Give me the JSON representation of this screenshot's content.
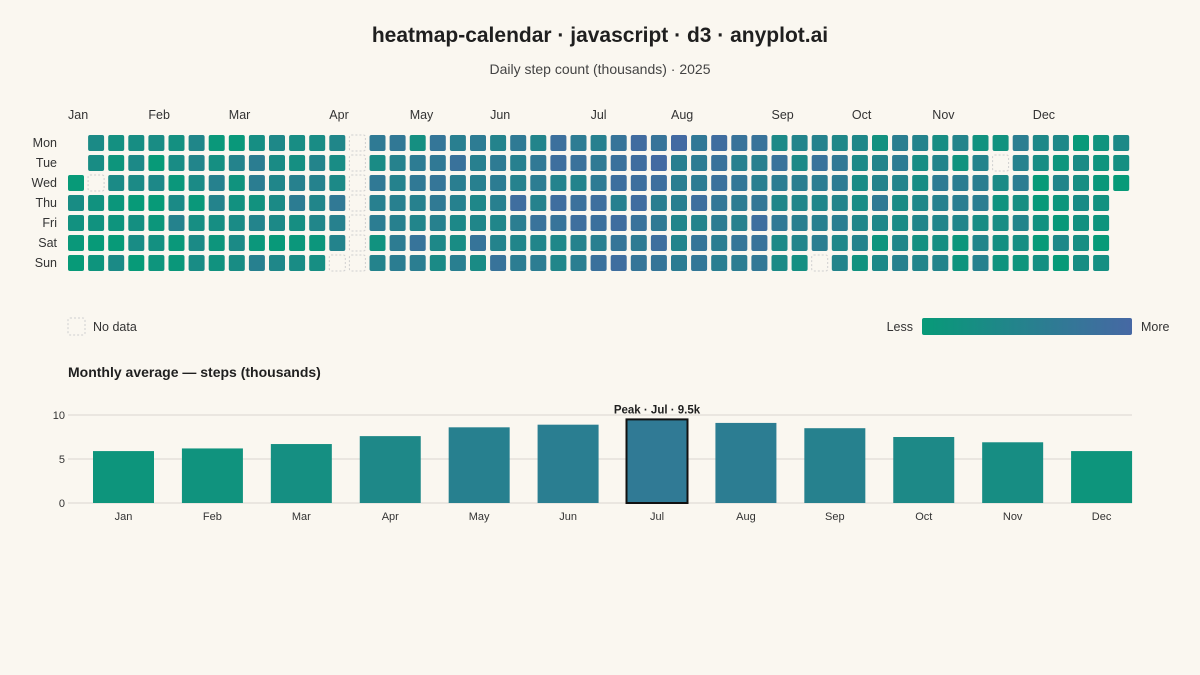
{
  "header": {
    "title": "heatmap-calendar · javascript · d3 · anyplot.ai",
    "subtitle": "Daily step count (thousands) · 2025"
  },
  "colors": {
    "low": "#079a78",
    "high": "#4668a4",
    "background": "#faf7f0",
    "no_data_stroke": "#cfcfcf",
    "peak_outline": "#111111"
  },
  "chart_data": [
    {
      "type": "heatmap",
      "subtitle": "Daily step count (thousands) · 2025",
      "year": 2025,
      "months": [
        "Jan",
        "Feb",
        "Mar",
        "Apr",
        "May",
        "Jun",
        "Jul",
        "Aug",
        "Sep",
        "Oct",
        "Nov",
        "Dec"
      ],
      "weekdays": [
        "Mon",
        "Tue",
        "Wed",
        "Thu",
        "Fri",
        "Sat",
        "Sun"
      ],
      "week_start": "Mon",
      "value_range": [
        3,
        13
      ],
      "legend": {
        "no_data": "No data",
        "less": "Less",
        "more": "More",
        "placement": "bottom"
      },
      "missing_dates": [
        "2025-01-08",
        "2025-04-06",
        "2025-04-07",
        "2025-04-08",
        "2025-04-09",
        "2025-04-10",
        "2025-04-11",
        "2025-04-12",
        "2025-04-13",
        "2025-09-21",
        "2025-11-18"
      ],
      "monthly_levels": [
        4.5,
        5.5,
        6.5,
        7.5,
        9.0,
        9.5,
        10.5,
        9.5,
        8.5,
        7.0,
        6.5,
        5.0
      ]
    },
    {
      "type": "bar",
      "title": "Monthly average — steps (thousands)",
      "categories": [
        "Jan",
        "Feb",
        "Mar",
        "Apr",
        "May",
        "Jun",
        "Jul",
        "Aug",
        "Sep",
        "Oct",
        "Nov",
        "Dec"
      ],
      "values": [
        5.9,
        6.2,
        6.7,
        7.6,
        8.6,
        8.9,
        9.5,
        9.1,
        8.5,
        7.5,
        6.9,
        5.9
      ],
      "ylim": [
        0,
        10
      ],
      "yticks": [
        0,
        5,
        10
      ],
      "grid": true,
      "annotation": {
        "text": "Peak · Jul · 9.5k",
        "category": "Jul"
      }
    }
  ]
}
